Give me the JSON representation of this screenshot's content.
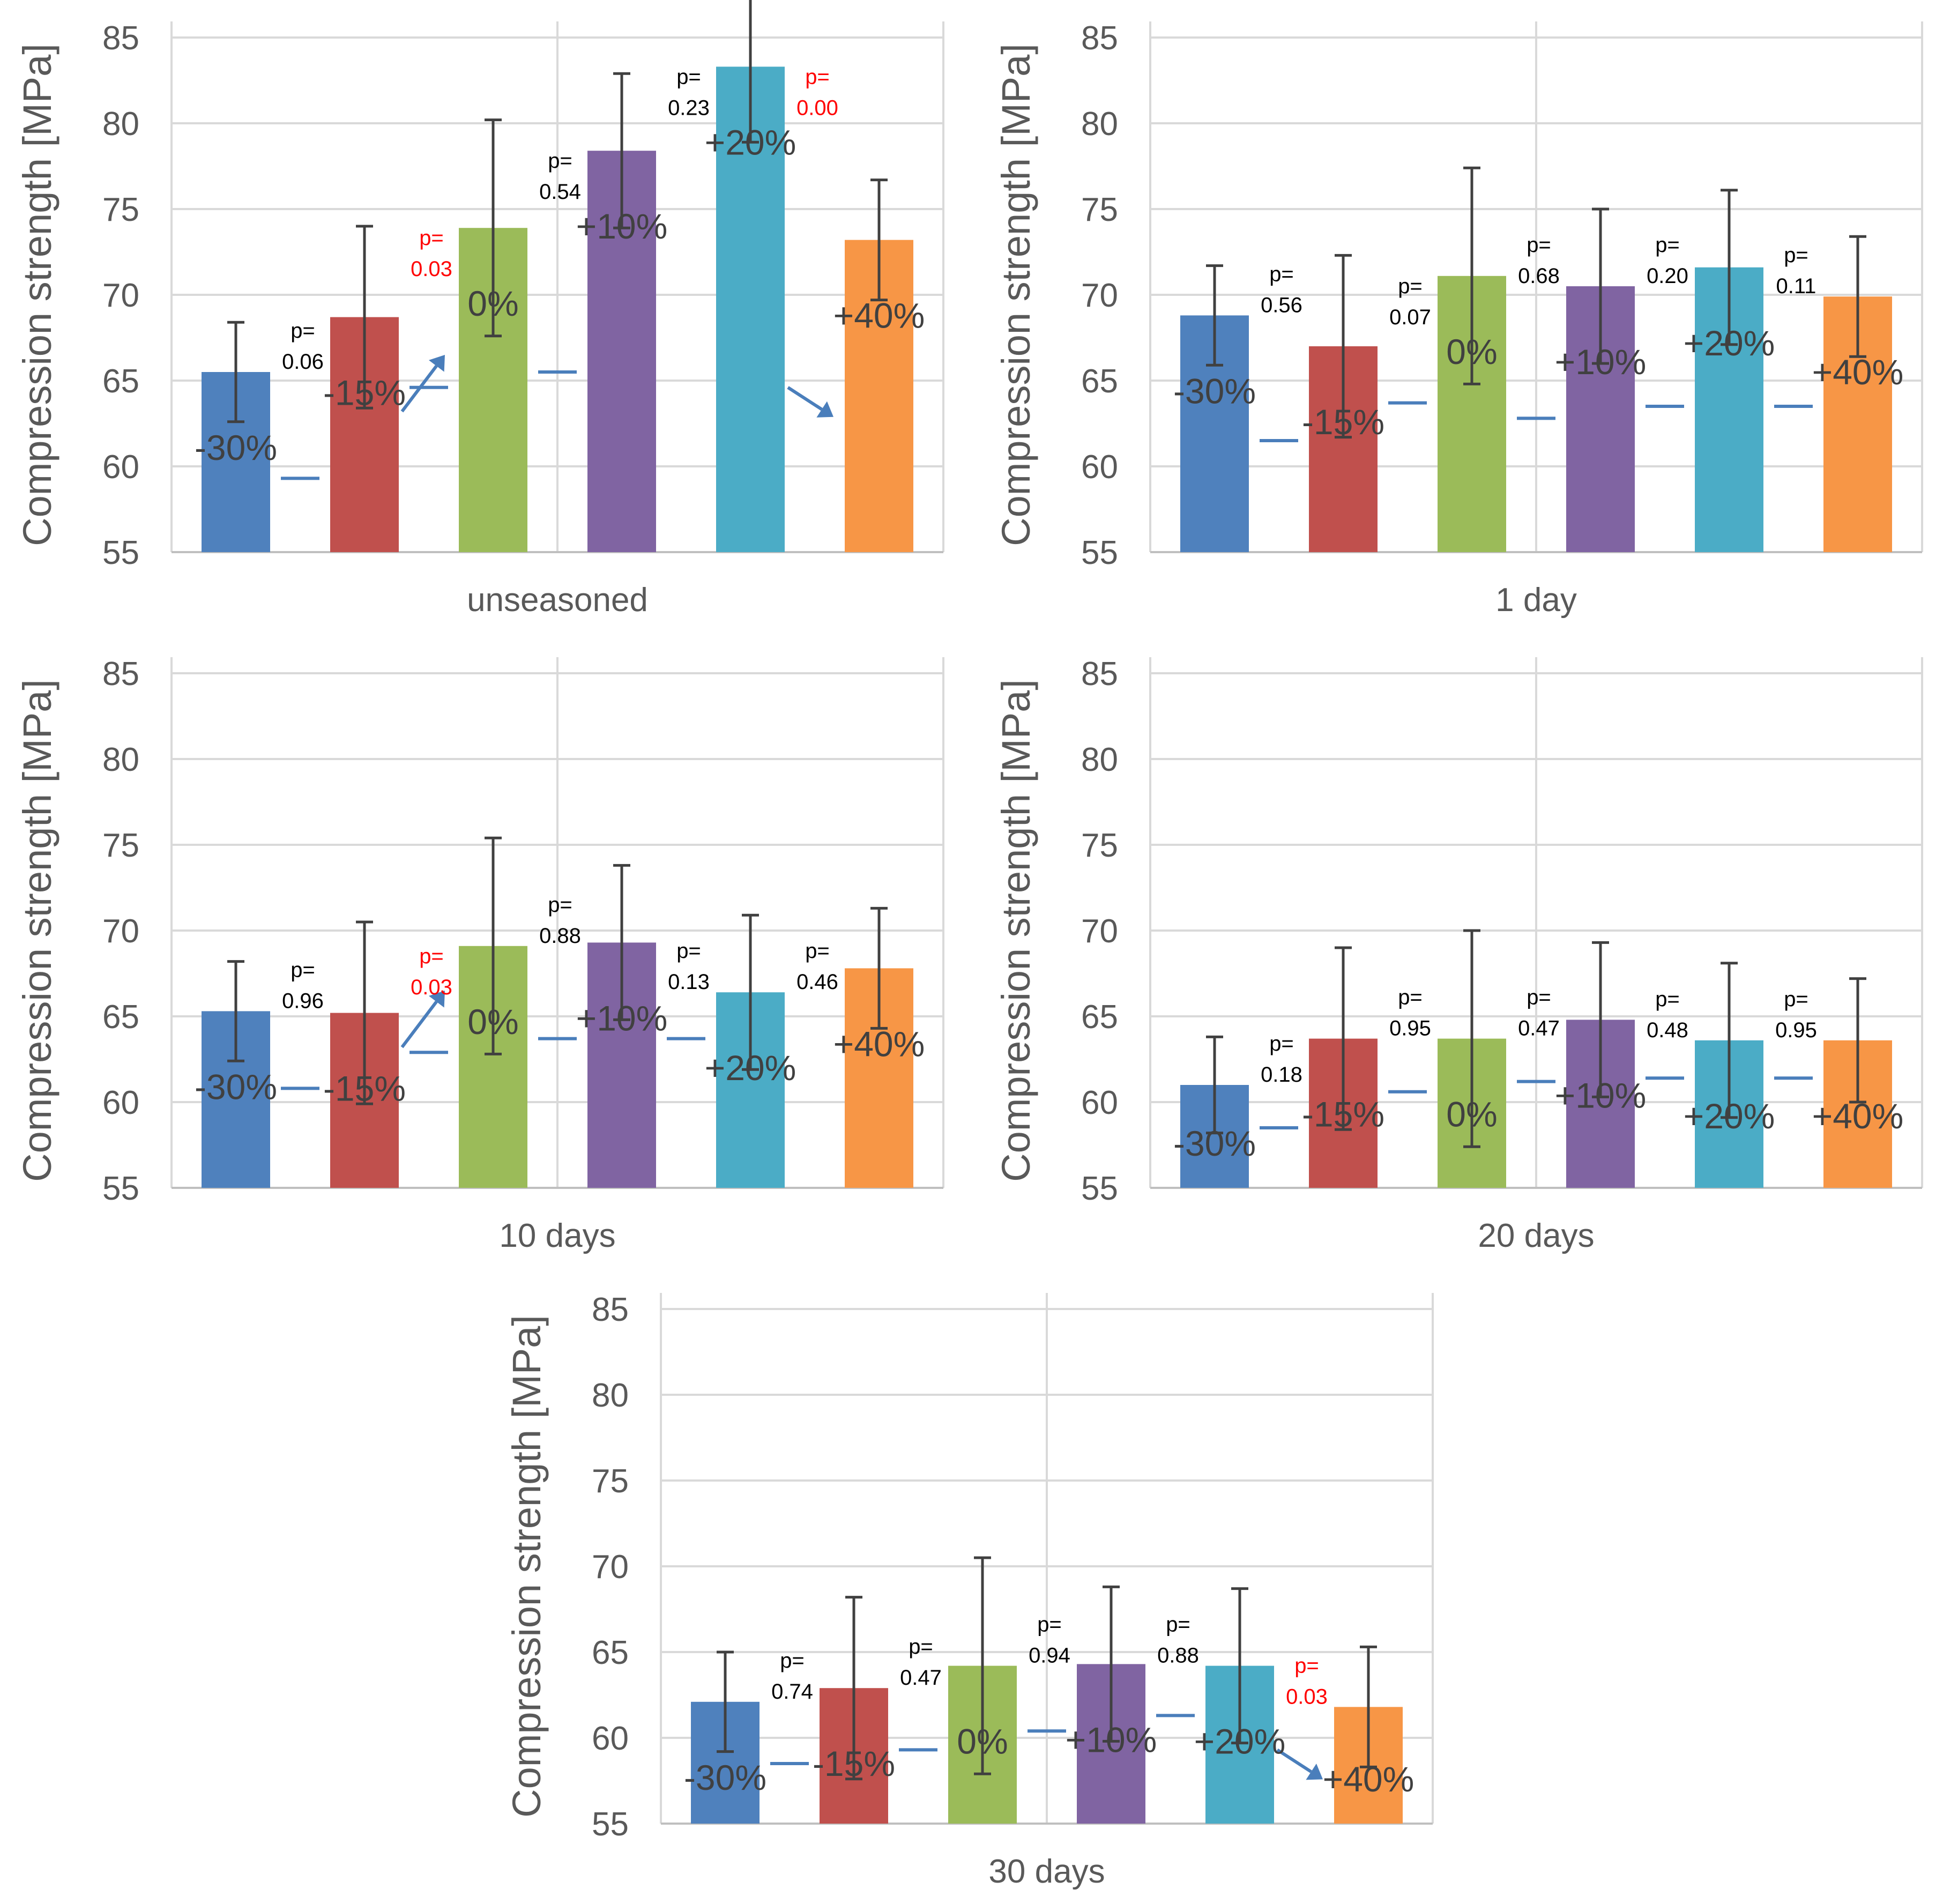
{
  "chart_data": [
    {
      "type": "bar",
      "title": "",
      "xlabel": "unseasoned",
      "ylabel": "Compression strength [MPa]",
      "ylim": [
        55,
        85
      ],
      "yticks": [
        "55",
        "60",
        "65",
        "70",
        "75",
        "80",
        "85"
      ],
      "grid": true,
      "legend": "none",
      "categories": [
        "-30%",
        "-15%",
        "0%",
        "+10%",
        "+20%",
        "+40%"
      ],
      "colors": [
        "#4f81bd",
        "#c0504d",
        "#9bbb59",
        "#8064a2",
        "#4bacc6",
        "#f79646"
      ],
      "values": [
        65.5,
        68.7,
        73.9,
        78.4,
        83.3,
        73.2
      ],
      "errors": [
        2.9,
        5.3,
        6.3,
        4.5,
        4.4,
        3.5
      ],
      "mean_markers": [
        59.3,
        64.6,
        65.5
      ],
      "p_values": [
        {
          "label": "p=",
          "value": "0.06",
          "highlight": false
        },
        {
          "label": "p=",
          "value": "0.03",
          "highlight": true
        },
        {
          "label": "p=",
          "value": "0.54",
          "highlight": false
        },
        {
          "label": "p=",
          "value": "0.23",
          "highlight": false
        },
        {
          "label": "p=",
          "value": "0.00",
          "highlight": true
        }
      ],
      "arrows": [
        "up",
        "down"
      ]
    },
    {
      "type": "bar",
      "title": "",
      "xlabel": "1 day",
      "ylabel": "Compression strength [MPa]",
      "ylim": [
        55,
        85
      ],
      "yticks": [
        "55",
        "60",
        "65",
        "70",
        "75",
        "80",
        "85"
      ],
      "grid": true,
      "legend": "none",
      "categories": [
        "-30%",
        "-15%",
        "0%",
        "+10%",
        "+20%",
        "+40%"
      ],
      "colors": [
        "#4f81bd",
        "#c0504d",
        "#9bbb59",
        "#8064a2",
        "#4bacc6",
        "#f79646"
      ],
      "values": [
        68.8,
        67.0,
        71.1,
        70.5,
        71.6,
        69.9
      ],
      "errors": [
        2.9,
        5.3,
        6.3,
        4.5,
        4.5,
        3.5
      ],
      "mean_markers": [
        61.5,
        63.7,
        62.8,
        63.5,
        63.5
      ],
      "p_values": [
        {
          "label": "p=",
          "value": "0.56",
          "highlight": false
        },
        {
          "label": "p=",
          "value": "0.07",
          "highlight": false
        },
        {
          "label": "p=",
          "value": "0.68",
          "highlight": false
        },
        {
          "label": "p=",
          "value": "0.20",
          "highlight": false
        },
        {
          "label": "p=",
          "value": "0.11",
          "highlight": false
        }
      ],
      "arrows": []
    },
    {
      "type": "bar",
      "title": "",
      "xlabel": "10 days",
      "ylabel": "Compression strength [MPa]",
      "ylim": [
        55,
        85
      ],
      "yticks": [
        "55",
        "60",
        "65",
        "70",
        "75",
        "80",
        "85"
      ],
      "grid": true,
      "legend": "none",
      "categories": [
        "-30%",
        "-15%",
        "0%",
        "+10%",
        "+20%",
        "+40%"
      ],
      "colors": [
        "#4f81bd",
        "#c0504d",
        "#9bbb59",
        "#8064a2",
        "#4bacc6",
        "#f79646"
      ],
      "values": [
        65.3,
        65.2,
        69.1,
        69.3,
        66.4,
        67.8
      ],
      "errors": [
        2.9,
        5.3,
        6.3,
        4.5,
        4.5,
        3.5
      ],
      "mean_markers": [
        60.8,
        62.9,
        63.7,
        63.7
      ],
      "p_values": [
        {
          "label": "p=",
          "value": "0.96",
          "highlight": false
        },
        {
          "label": "p=",
          "value": "0.03",
          "highlight": true
        },
        {
          "label": "p=",
          "value": "0.88",
          "highlight": false
        },
        {
          "label": "p=",
          "value": "0.13",
          "highlight": false
        },
        {
          "label": "p=",
          "value": "0.46",
          "highlight": false
        }
      ],
      "arrows": [
        "up"
      ]
    },
    {
      "type": "bar",
      "title": "",
      "xlabel": "20 days",
      "ylabel": "Compression strength [MPa]",
      "ylim": [
        55,
        85
      ],
      "yticks": [
        "55",
        "60",
        "65",
        "70",
        "75",
        "80",
        "85"
      ],
      "grid": true,
      "legend": "none",
      "categories": [
        "-30%",
        "-15%",
        "0%",
        "+10%",
        "+20%",
        "+40%"
      ],
      "colors": [
        "#4f81bd",
        "#c0504d",
        "#9bbb59",
        "#8064a2",
        "#4bacc6",
        "#f79646"
      ],
      "values": [
        61.0,
        63.7,
        63.7,
        64.8,
        63.6,
        63.6
      ],
      "errors": [
        2.8,
        5.3,
        6.3,
        4.5,
        4.5,
        3.6
      ],
      "mean_markers": [
        58.5,
        60.6,
        61.2,
        61.4,
        61.4
      ],
      "p_values": [
        {
          "label": "p=",
          "value": "0.18",
          "highlight": false
        },
        {
          "label": "p=",
          "value": "0.95",
          "highlight": false
        },
        {
          "label": "p=",
          "value": "0.47",
          "highlight": false
        },
        {
          "label": "p=",
          "value": "0.48",
          "highlight": false
        },
        {
          "label": "p=",
          "value": "0.95",
          "highlight": false
        }
      ],
      "arrows": []
    },
    {
      "type": "bar",
      "title": "",
      "xlabel": "30 days",
      "ylabel": "Compression strength [MPa]",
      "ylim": [
        55,
        85
      ],
      "yticks": [
        "55",
        "60",
        "65",
        "70",
        "75",
        "80",
        "85"
      ],
      "grid": true,
      "legend": "none",
      "categories": [
        "-30%",
        "-15%",
        "0%",
        "+10%",
        "+20%",
        "+40%"
      ],
      "colors": [
        "#4f81bd",
        "#c0504d",
        "#9bbb59",
        "#8064a2",
        "#4bacc6",
        "#f79646"
      ],
      "values": [
        62.1,
        62.9,
        64.2,
        64.3,
        64.2,
        61.8
      ],
      "errors": [
        2.9,
        5.3,
        6.3,
        4.5,
        4.5,
        3.5
      ],
      "mean_markers": [
        58.5,
        59.3,
        60.4,
        61.3
      ],
      "p_values": [
        {
          "label": "p=",
          "value": "0.74",
          "highlight": false
        },
        {
          "label": "p=",
          "value": "0.47",
          "highlight": false
        },
        {
          "label": "p=",
          "value": "0.94",
          "highlight": false
        },
        {
          "label": "p=",
          "value": "0.88",
          "highlight": false
        },
        {
          "label": "p=",
          "value": "0.03",
          "highlight": true
        }
      ],
      "arrows": [
        "down"
      ]
    }
  ]
}
